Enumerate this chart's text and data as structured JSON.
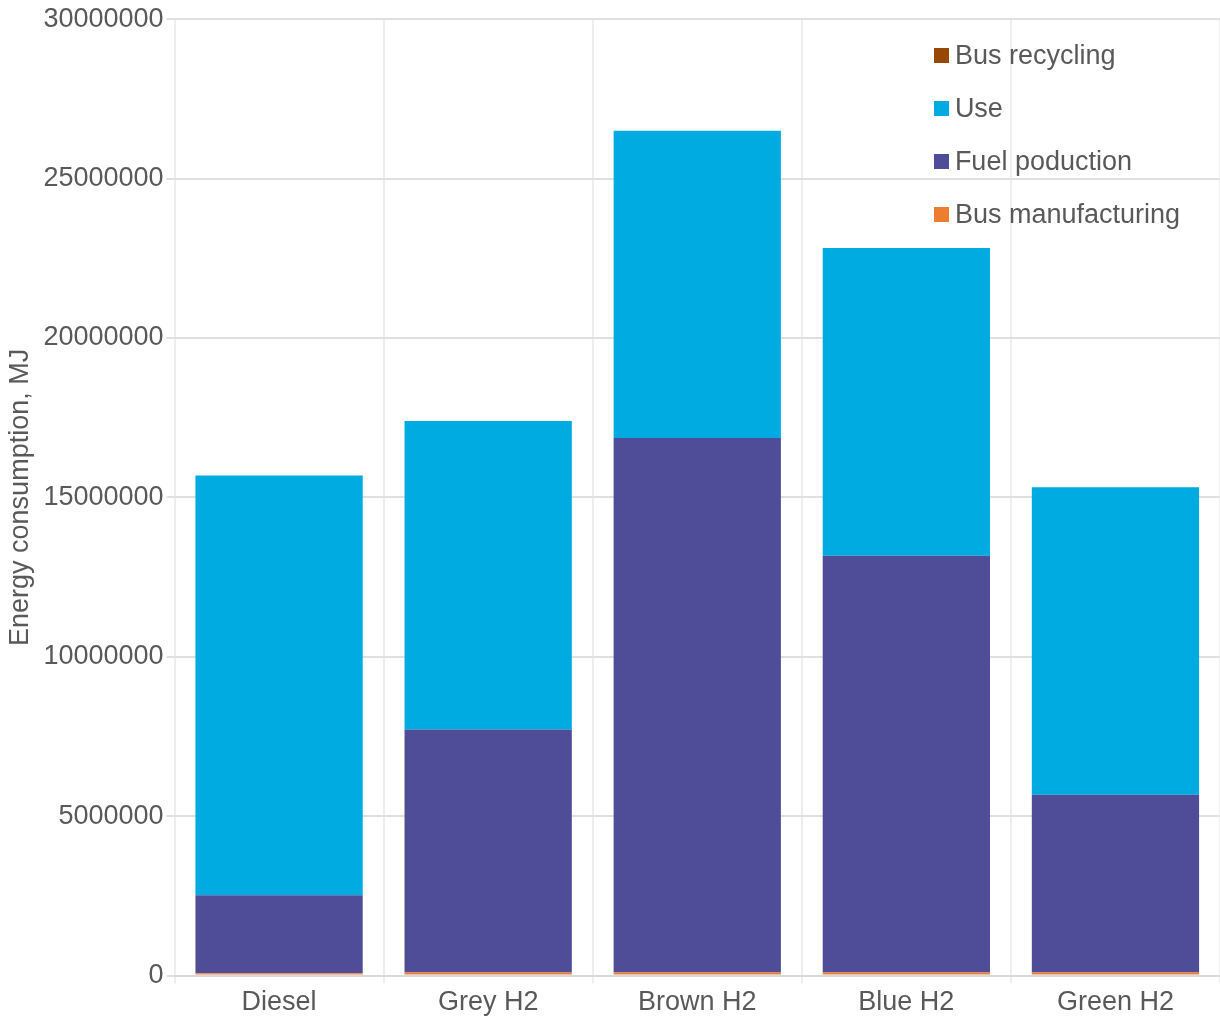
{
  "chart_data": {
    "type": "bar",
    "stacked": true,
    "ylabel": "Energy consumption, MJ",
    "categories": [
      "Diesel",
      "Grey H2",
      "Brown H2",
      "Blue H2",
      "Green H2"
    ],
    "series": [
      {
        "name": "Bus manufacturing",
        "color": "#ed7d31",
        "values": [
          70000,
          100000,
          100000,
          100000,
          100000
        ]
      },
      {
        "name": "Fuel poduction",
        "color": "#4f4d97",
        "values": [
          2450000,
          7620000,
          16760000,
          13070000,
          5570000
        ]
      },
      {
        "name": "Use",
        "color": "#00abe1",
        "values": [
          13170000,
          9680000,
          9640000,
          9650000,
          9650000
        ]
      },
      {
        "name": "Bus recycling",
        "color": "#974706",
        "values": [
          null,
          null,
          null,
          null,
          null
        ]
      }
    ],
    "ylim": [
      0,
      30000000
    ],
    "yticks": [
      0,
      5000000,
      10000000,
      15000000,
      20000000,
      25000000,
      30000000
    ],
    "grid": true,
    "legend": "top right"
  }
}
